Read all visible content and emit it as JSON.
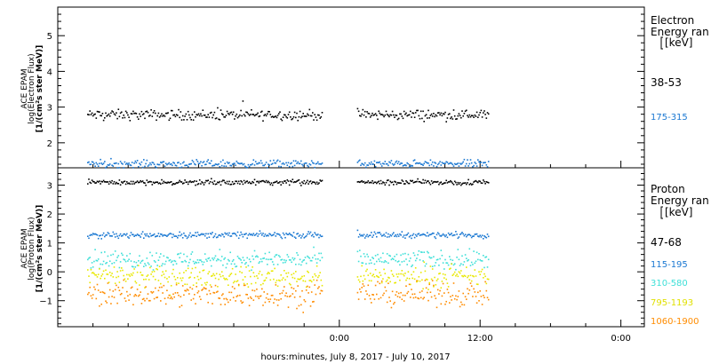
{
  "chart_data": [
    {
      "type": "scatter",
      "panel": "electron",
      "ylabel_lines": [
        "ACE EPAM",
        "log(Electron Flux)",
        "[1/(cm²s ster MeV)]"
      ],
      "ylim": [
        1.3,
        5.8
      ],
      "y_ticks": [
        2,
        3,
        4,
        5
      ],
      "legend_title": [
        "Electron",
        "Energy ran",
        "[keV]"
      ],
      "legend_placement": "right",
      "series": [
        {
          "name": "38-53",
          "color": "#000000",
          "level": 2.8,
          "jitter": 0.07,
          "segments": [
            [
              -21.5,
              -1.5
            ],
            [
              1.5,
              12.7
            ]
          ]
        },
        {
          "name": "175-315",
          "color": "#1a78d2",
          "level": 1.43,
          "jitter": 0.05,
          "segments": [
            [
              -21.5,
              -1.5
            ],
            [
              1.5,
              12.7
            ]
          ]
        }
      ]
    },
    {
      "type": "scatter",
      "panel": "proton",
      "ylabel_lines": [
        "ACE EPAM",
        "log(Proton Flux)",
        "[1/(cm²s ster MeV)]"
      ],
      "ylim": [
        -1.9,
        3.6
      ],
      "y_ticks": [
        -1,
        0,
        1,
        2,
        3
      ],
      "legend_title": [
        "Proton",
        "Energy ran",
        "[keV]"
      ],
      "legend_placement": "right",
      "series": [
        {
          "name": "47-68",
          "color": "#000000",
          "level": 3.12,
          "jitter": 0.04,
          "segments": [
            [
              -21.5,
              -1.5
            ],
            [
              1.5,
              12.7
            ]
          ]
        },
        {
          "name": "115-195",
          "color": "#1a78d2",
          "level": 1.3,
          "jitter": 0.05,
          "segments": [
            [
              -21.5,
              -1.5
            ],
            [
              1.5,
              12.7
            ]
          ]
        },
        {
          "name": "310-580",
          "color": "#3fe0d8",
          "level": 0.45,
          "jitter": 0.15,
          "segments": [
            [
              -21.5,
              -1.5
            ],
            [
              1.5,
              12.7
            ]
          ]
        },
        {
          "name": "795-1193",
          "color": "#e8e800",
          "level": -0.15,
          "jitter": 0.16,
          "segments": [
            [
              -21.5,
              -1.5
            ],
            [
              1.5,
              12.7
            ]
          ]
        },
        {
          "name": "1060-1900",
          "color": "#ff8c00",
          "level": -0.75,
          "jitter": 0.2,
          "segments": [
            [
              -21.5,
              -1.5
            ],
            [
              1.5,
              12.7
            ]
          ]
        }
      ]
    }
  ],
  "x_axis": {
    "xlim": [
      -24,
      26
    ],
    "tick_labels": [
      {
        "value": 0,
        "label": "0:00"
      },
      {
        "value": 12,
        "label": "12:00"
      },
      {
        "value": 24,
        "label": "0:00"
      }
    ],
    "minor_every": 3,
    "title": "hours:minutes, July  8, 2017 - July 10, 2017"
  }
}
